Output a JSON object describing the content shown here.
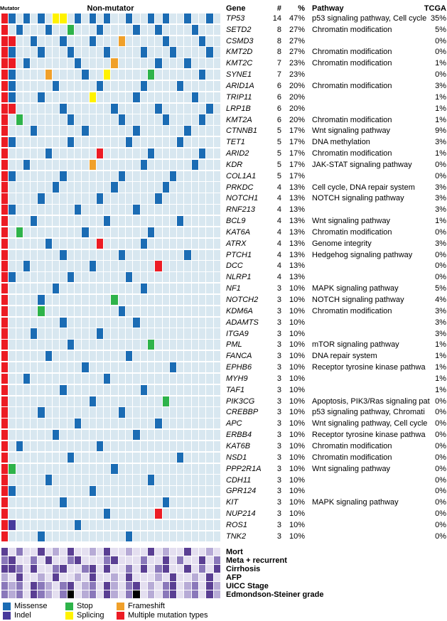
{
  "header": {
    "mutator_label": "Mutator",
    "non_mutator_label": "Non-mutator",
    "col_gene": "Gene",
    "col_count": "#",
    "col_percent": "%",
    "col_pathway": "Pathway",
    "col_tcga": "TCGA"
  },
  "colors": {
    "mutation": {
      "M": "#1b6cb4",
      "S": "#2eb34a",
      "F": "#f0a02a",
      "P": "#fff200",
      "I": "#473a9c",
      "X": "#ec1c24",
      ".": "#d8e7f0"
    },
    "clinical": {
      "0": "#e4dff0",
      "1": "#b7abd6",
      "2": "#8a78ba",
      "3": "#5a3f93",
      "b": "#000000"
    }
  },
  "chart_data": {
    "type": "heatmap",
    "n_samples": 30,
    "mutation_codes": {
      "M": "Missense",
      "S": "Stop",
      "F": "Frameshift",
      "I": "Indel",
      "P": "Splicing",
      "X": "Multiple mutation types",
      ".": "none"
    },
    "genes": [
      {
        "gene": "TP53",
        "count": 14,
        "percent": "47%",
        "pathway": "p53 signaling pathway, Cell cycle",
        "tcga": "35%",
        "cells": "XM.M.M.PP.M.M.M..M..M.M..M..M."
      },
      {
        "gene": "SETD2",
        "count": 8,
        "percent": "27%",
        "pathway": "Chromatin modification",
        "tcga": "5%",
        "cells": "X.M...M..S...M....M..M....M..."
      },
      {
        "gene": "CSMD3",
        "count": 8,
        "percent": "27%",
        "pathway": "",
        "tcga": "0%",
        "cells": "XX..M...M...M...F.....M....M.."
      },
      {
        "gene": "KMT2D",
        "count": 8,
        "percent": "27%",
        "pathway": "Chromatin modification",
        "tcga": "0%",
        "cells": "XM...M...M....M....M...M....M."
      },
      {
        "gene": "KMT2C",
        "count": 7,
        "percent": "23%",
        "pathway": "Chromatin modification",
        "tcga": "1%",
        "cells": "XX.M......M....F.....M...M...."
      },
      {
        "gene": "SYNE1",
        "count": 7,
        "percent": "23%",
        "pathway": "",
        "tcga": "0%",
        "cells": "XM....F....M..P.....S......M.."
      },
      {
        "gene": "ARID1A",
        "count": 6,
        "percent": "20%",
        "pathway": "Chromatin modification",
        "tcga": "3%",
        "cells": "XM.....M.....M.....M....M....."
      },
      {
        "gene": "TRIP11",
        "count": 6,
        "percent": "20%",
        "pathway": "",
        "tcga": "1%",
        "cells": "XM...M......P.....M.......M..."
      },
      {
        "gene": "LRP1B",
        "count": 6,
        "percent": "20%",
        "pathway": "",
        "tcga": "1%",
        "cells": "XX......M......M.....M......M."
      },
      {
        "gene": "KMT2A",
        "count": 6,
        "percent": "20%",
        "pathway": "Chromatin modification",
        "tcga": "1%",
        "cells": "X.S......M......M.....M....M.."
      },
      {
        "gene": "CTNNB1",
        "count": 5,
        "percent": "17%",
        "pathway": "Wnt signaling pathway",
        "tcga": "9%",
        "cells": "X...M......M......M......M...."
      },
      {
        "gene": "TET1",
        "count": 5,
        "percent": "17%",
        "pathway": "DNA methylation",
        "tcga": "3%",
        "cells": "XM.......M.......M......M....."
      },
      {
        "gene": "ARID2",
        "count": 5,
        "percent": "17%",
        "pathway": "Chromatin modification",
        "tcga": "1%",
        "cells": "X.....M......X......M......M.."
      },
      {
        "gene": "KDR",
        "count": 5,
        "percent": "17%",
        "pathway": "JAK-STAT signaling pathway",
        "tcga": "0%",
        "cells": "X..M........F......M......M..."
      },
      {
        "gene": "COL1A1",
        "count": 5,
        "percent": "17%",
        "pathway": "",
        "tcga": "0%",
        "cells": "XM......M.......M......M......"
      },
      {
        "gene": "PRKDC",
        "count": 4,
        "percent": "13%",
        "pathway": "Cell cycle, DNA repair system",
        "tcga": "3%",
        "cells": "X......M.......M......M......."
      },
      {
        "gene": "NOTCH1",
        "count": 4,
        "percent": "13%",
        "pathway": "NOTCH signaling pathway",
        "tcga": "3%",
        "cells": "X....M.......M.......M........"
      },
      {
        "gene": "RNF213",
        "count": 4,
        "percent": "13%",
        "pathway": "",
        "tcga": "3%",
        "cells": "XM........M.......M..........."
      },
      {
        "gene": "BCL9",
        "count": 4,
        "percent": "13%",
        "pathway": "Wnt signaling pathway",
        "tcga": "1%",
        "cells": "X...M.........M.........M....."
      },
      {
        "gene": "KAT6A",
        "count": 4,
        "percent": "13%",
        "pathway": "Chromatin modification",
        "tcga": "0%",
        "cells": "X.S........M........M........."
      },
      {
        "gene": "ATRX",
        "count": 4,
        "percent": "13%",
        "pathway": "Genome integrity",
        "tcga": "3%",
        "cells": "X.....M......X.....M.........."
      },
      {
        "gene": "PTCH1",
        "count": 4,
        "percent": "13%",
        "pathway": "Hedgehog signaling pathway",
        "tcga": "0%",
        "cells": "X.......M.......M........M...."
      },
      {
        "gene": "DCC",
        "count": 4,
        "percent": "13%",
        "pathway": "",
        "tcga": "0%",
        "cells": "X..M........M........X........"
      },
      {
        "gene": "NLRP1",
        "count": 4,
        "percent": "13%",
        "pathway": "",
        "tcga": "0%",
        "cells": "XM.......M.......M............"
      },
      {
        "gene": "NF1",
        "count": 3,
        "percent": "10%",
        "pathway": "MAPK signaling pathway",
        "tcga": "5%",
        "cells": "X......M...........M.........."
      },
      {
        "gene": "NOTCH2",
        "count": 3,
        "percent": "10%",
        "pathway": "NOTCH signaling pathway",
        "tcga": "4%",
        "cells": "X....M.........S.............."
      },
      {
        "gene": "KDM6A",
        "count": 3,
        "percent": "10%",
        "pathway": "Chromatin modification",
        "tcga": "3%",
        "cells": "X....S..........M............."
      },
      {
        "gene": "ADAMTS",
        "count": 3,
        "percent": "10%",
        "pathway": "",
        "tcga": "3%",
        "cells": "X.......M.........M..........."
      },
      {
        "gene": "ITGA9",
        "count": 3,
        "percent": "10%",
        "pathway": "",
        "tcga": "3%",
        "cells": "X...M........M................"
      },
      {
        "gene": "PML",
        "count": 3,
        "percent": "10%",
        "pathway": "mTOR signaling pathway",
        "tcga": "1%",
        "cells": "X........M..........S........."
      },
      {
        "gene": "FANCA",
        "count": 3,
        "percent": "10%",
        "pathway": "DNA repair system",
        "tcga": "1%",
        "cells": "X.....M..........M............"
      },
      {
        "gene": "EPHB6",
        "count": 3,
        "percent": "10%",
        "pathway": "Receptor tyrosine kinase pathwa",
        "tcga": "1%",
        "cells": "X..........M...........M......"
      },
      {
        "gene": "MYH9",
        "count": 3,
        "percent": "10%",
        "pathway": "",
        "tcga": "1%",
        "cells": "X..M..........M..............."
      },
      {
        "gene": "TAF1",
        "count": 3,
        "percent": "10%",
        "pathway": "",
        "tcga": "1%",
        "cells": "X.......M..........M.........."
      },
      {
        "gene": "PIK3CG",
        "count": 3,
        "percent": "10%",
        "pathway": "Apoptosis, PIK3/Ras signaling pat",
        "tcga": "0%",
        "cells": "X...........M.........S......."
      },
      {
        "gene": "CREBBP",
        "count": 3,
        "percent": "10%",
        "pathway": "p53 signaling pathway, Chromati",
        "tcga": "0%",
        "cells": "X....M..........M............."
      },
      {
        "gene": "APC",
        "count": 3,
        "percent": "10%",
        "pathway": "Wnt signaling pathway, Cell cycle",
        "tcga": "0%",
        "cells": "X.........M..........M........"
      },
      {
        "gene": "ERBB4",
        "count": 3,
        "percent": "10%",
        "pathway": "Receptor tyrosine kinase pathwa",
        "tcga": "0%",
        "cells": "X......M..........M..........."
      },
      {
        "gene": "KAT6B",
        "count": 3,
        "percent": "10%",
        "pathway": "Chromatin modification",
        "tcga": "0%",
        "cells": "X.M..........M................"
      },
      {
        "gene": "NSD1",
        "count": 3,
        "percent": "10%",
        "pathway": "Chromatin modification",
        "tcga": "0%",
        "cells": "X........M..............M....."
      },
      {
        "gene": "PPP2R1A",
        "count": 3,
        "percent": "10%",
        "pathway": "Wnt signaling pathway",
        "tcga": "0%",
        "cells": "XS.............M.............."
      },
      {
        "gene": "CDH11",
        "count": 3,
        "percent": "10%",
        "pathway": "",
        "tcga": "0%",
        "cells": "X.....M.............M........."
      },
      {
        "gene": "GPR124",
        "count": 3,
        "percent": "10%",
        "pathway": "",
        "tcga": "0%",
        "cells": "XM..........M................."
      },
      {
        "gene": "KIT",
        "count": 3,
        "percent": "10%",
        "pathway": "MAPK signaling pathway",
        "tcga": "0%",
        "cells": "X.......M.............M......."
      },
      {
        "gene": "NUP214",
        "count": 3,
        "percent": "10%",
        "pathway": "",
        "tcga": "0%",
        "cells": "X.............M......X........"
      },
      {
        "gene": "ROS1",
        "count": 3,
        "percent": "10%",
        "pathway": "",
        "tcga": "0%",
        "cells": "XI........M..................."
      },
      {
        "gene": "TNK2",
        "count": 3,
        "percent": "10%",
        "pathway": "",
        "tcga": "0%",
        "cells": "X....M...........M............"
      }
    ],
    "clinical": [
      {
        "label": "Mort",
        "cells": "302003010300103001003010030010"
      },
      {
        "label": "Meta + recurrent",
        "cells": "230020300230002300020030200302"
      },
      {
        "label": "Cirrhosis",
        "cells": "332030023002303002030230030203"
      },
      {
        "label": "AFP",
        "cells": "103001030010300103000103001030"
      },
      {
        "label": "UICC Stage",
        "cells": "212032102301203102301023012031"
      },
      {
        "label": "Edmondson-Steiner grade",
        "cells": "212032102b01203102b01023012031"
      }
    ]
  },
  "legend": {
    "items": [
      {
        "label": "Missense",
        "code": "M"
      },
      {
        "label": "Stop",
        "code": "S"
      },
      {
        "label": "Frameshift",
        "code": "F"
      },
      {
        "label": "Indel",
        "code": "I"
      },
      {
        "label": "Splicing",
        "code": "P"
      },
      {
        "label": "Multiple mutation types",
        "code": "X"
      }
    ]
  }
}
